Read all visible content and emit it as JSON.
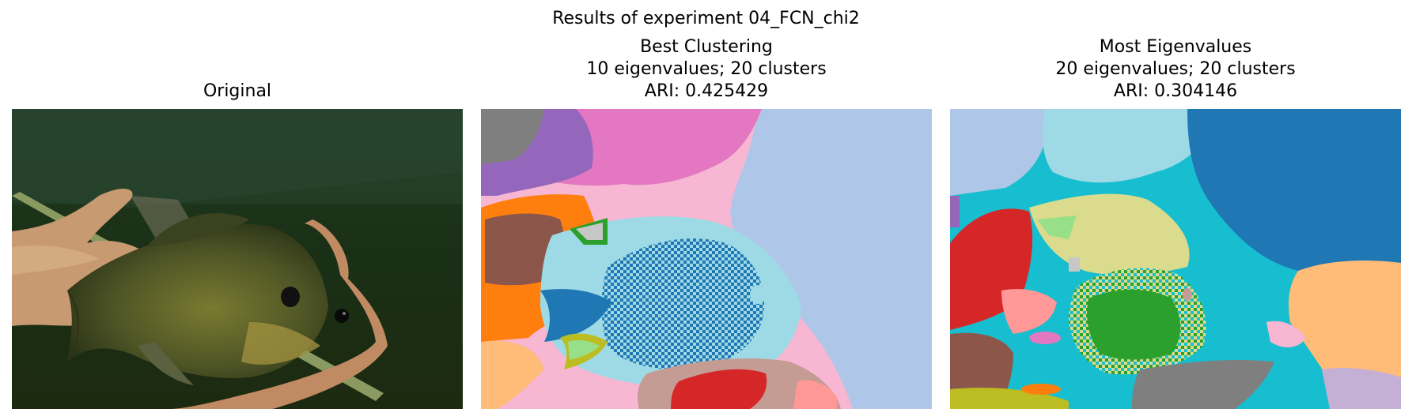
{
  "figure": {
    "suptitle": "Results of experiment 04_FCN_chi2"
  },
  "panels": [
    {
      "title_lines": [
        "Original"
      ]
    },
    {
      "title_lines": [
        "Best Clustering",
        "10 eigenvalues; 20 clusters",
        "ARI: 0.425429"
      ]
    },
    {
      "title_lines": [
        "Most Eigenvalues",
        "20 eigenvalues; 20 clusters",
        "ARI: 0.304146"
      ]
    }
  ]
}
